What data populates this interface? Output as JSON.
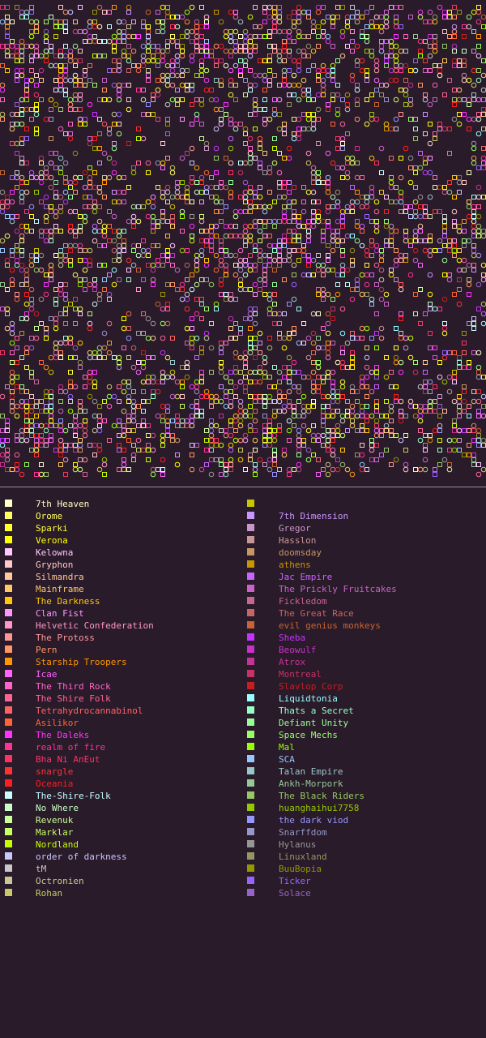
{
  "legend": {
    "left": [
      {
        "label": "7th Heaven",
        "color": "#ffffc8"
      },
      {
        "label": "Orome",
        "color": "#ffff64"
      },
      {
        "label": "Sparki",
        "color": "#ffff32"
      },
      {
        "label": "Verona",
        "color": "#ffff00"
      },
      {
        "label": "Kelowna",
        "color": "#ffc8ff"
      },
      {
        "label": "Gryphon",
        "color": "#ffc8c8"
      },
      {
        "label": "Silmandra",
        "color": "#ffc896"
      },
      {
        "label": "Mainframe",
        "color": "#ffc864"
      },
      {
        "label": "The Darkness",
        "color": "#ffc800"
      },
      {
        "label": "Clan Fist",
        "color": "#ff96ff"
      },
      {
        "label": "Helvetic Confederation",
        "color": "#ff96c8"
      },
      {
        "label": "The Protoss",
        "color": "#ff9696"
      },
      {
        "label": "Pern",
        "color": "#ff9664"
      },
      {
        "label": "Starship Troopers",
        "color": "#ff9600"
      },
      {
        "label": "Icae",
        "color": "#ff64ff"
      },
      {
        "label": "The Third Rock",
        "color": "#ff64c8"
      },
      {
        "label": "The Shire Folk",
        "color": "#ff6496"
      },
      {
        "label": "Tetrahydrocannabinol",
        "color": "#ff6464"
      },
      {
        "label": "Asilikor",
        "color": "#ff6432"
      },
      {
        "label": "The Daleks",
        "color": "#ff32ff"
      },
      {
        "label": "realm of fire",
        "color": "#ff3296"
      },
      {
        "label": "Bha Ni AnEut",
        "color": "#ff3264"
      },
      {
        "label": "snargle",
        "color": "#ff3232"
      },
      {
        "label": "Oceania",
        "color": "#ff1e1e"
      },
      {
        "label": "The-Shire-Folk",
        "color": "#c8ffff"
      },
      {
        "label": "No Where",
        "color": "#c8ffc8"
      },
      {
        "label": "Revenuk",
        "color": "#c8ff96"
      },
      {
        "label": "Marklar",
        "color": "#c8ff64"
      },
      {
        "label": "Nordland",
        "color": "#c8ff00"
      },
      {
        "label": "order of darkness",
        "color": "#c8c8ff"
      },
      {
        "label": "tM",
        "color": "#c8c8c8"
      },
      {
        "label": "Octronien",
        "color": "#c8c896"
      },
      {
        "label": "Rohan",
        "color": "#c8c864"
      }
    ],
    "right": [
      {
        "label": "",
        "color": "#c8c800"
      },
      {
        "label": "7th Dimension",
        "color": "#c896ff"
      },
      {
        "label": "Gregor",
        "color": "#c896c8"
      },
      {
        "label": "Hasslon",
        "color": "#c89696"
      },
      {
        "label": "doomsday",
        "color": "#c89664"
      },
      {
        "label": "athens",
        "color": "#c89600"
      },
      {
        "label": "Jac Empire",
        "color": "#c864ff"
      },
      {
        "label": "The Prickly Fruitcakes",
        "color": "#c864c8"
      },
      {
        "label": "Fickledom",
        "color": "#c86496"
      },
      {
        "label": "The Great Race",
        "color": "#c86464"
      },
      {
        "label": "evil genius monkeys",
        "color": "#c86432"
      },
      {
        "label": "Sheba",
        "color": "#c832ff"
      },
      {
        "label": "Beowulf",
        "color": "#c832c8"
      },
      {
        "label": "Atrox",
        "color": "#c83296"
      },
      {
        "label": "Montreal",
        "color": "#c83264"
      },
      {
        "label": "Slavlop Corp",
        "color": "#c81e1e"
      },
      {
        "label": "Liquidtonia",
        "color": "#96ffff"
      },
      {
        "label": "Thats a Secret",
        "color": "#96ffc8"
      },
      {
        "label": "Defiant Unity",
        "color": "#96ff96"
      },
      {
        "label": "Space Mechs",
        "color": "#96ff64"
      },
      {
        "label": "Mal",
        "color": "#96ff00"
      },
      {
        "label": "SCA",
        "color": "#96c8ff"
      },
      {
        "label": "Talan Empire",
        "color": "#96c8c8"
      },
      {
        "label": "Ankh-Morpork",
        "color": "#96c896"
      },
      {
        "label": "The Black Riders",
        "color": "#96c864"
      },
      {
        "label": "huanghaihui7758",
        "color": "#96c800"
      },
      {
        "label": "the dark viod",
        "color": "#9696ff"
      },
      {
        "label": "Snarffdom",
        "color": "#9696c8"
      },
      {
        "label": "Hylanus",
        "color": "#969696"
      },
      {
        "label": "Linuxland",
        "color": "#969664"
      },
      {
        "label": "BuuBopia",
        "color": "#969600"
      },
      {
        "label": "Ticker",
        "color": "#9664ff"
      },
      {
        "label": "Solace",
        "color": "#9664c8"
      }
    ]
  }
}
